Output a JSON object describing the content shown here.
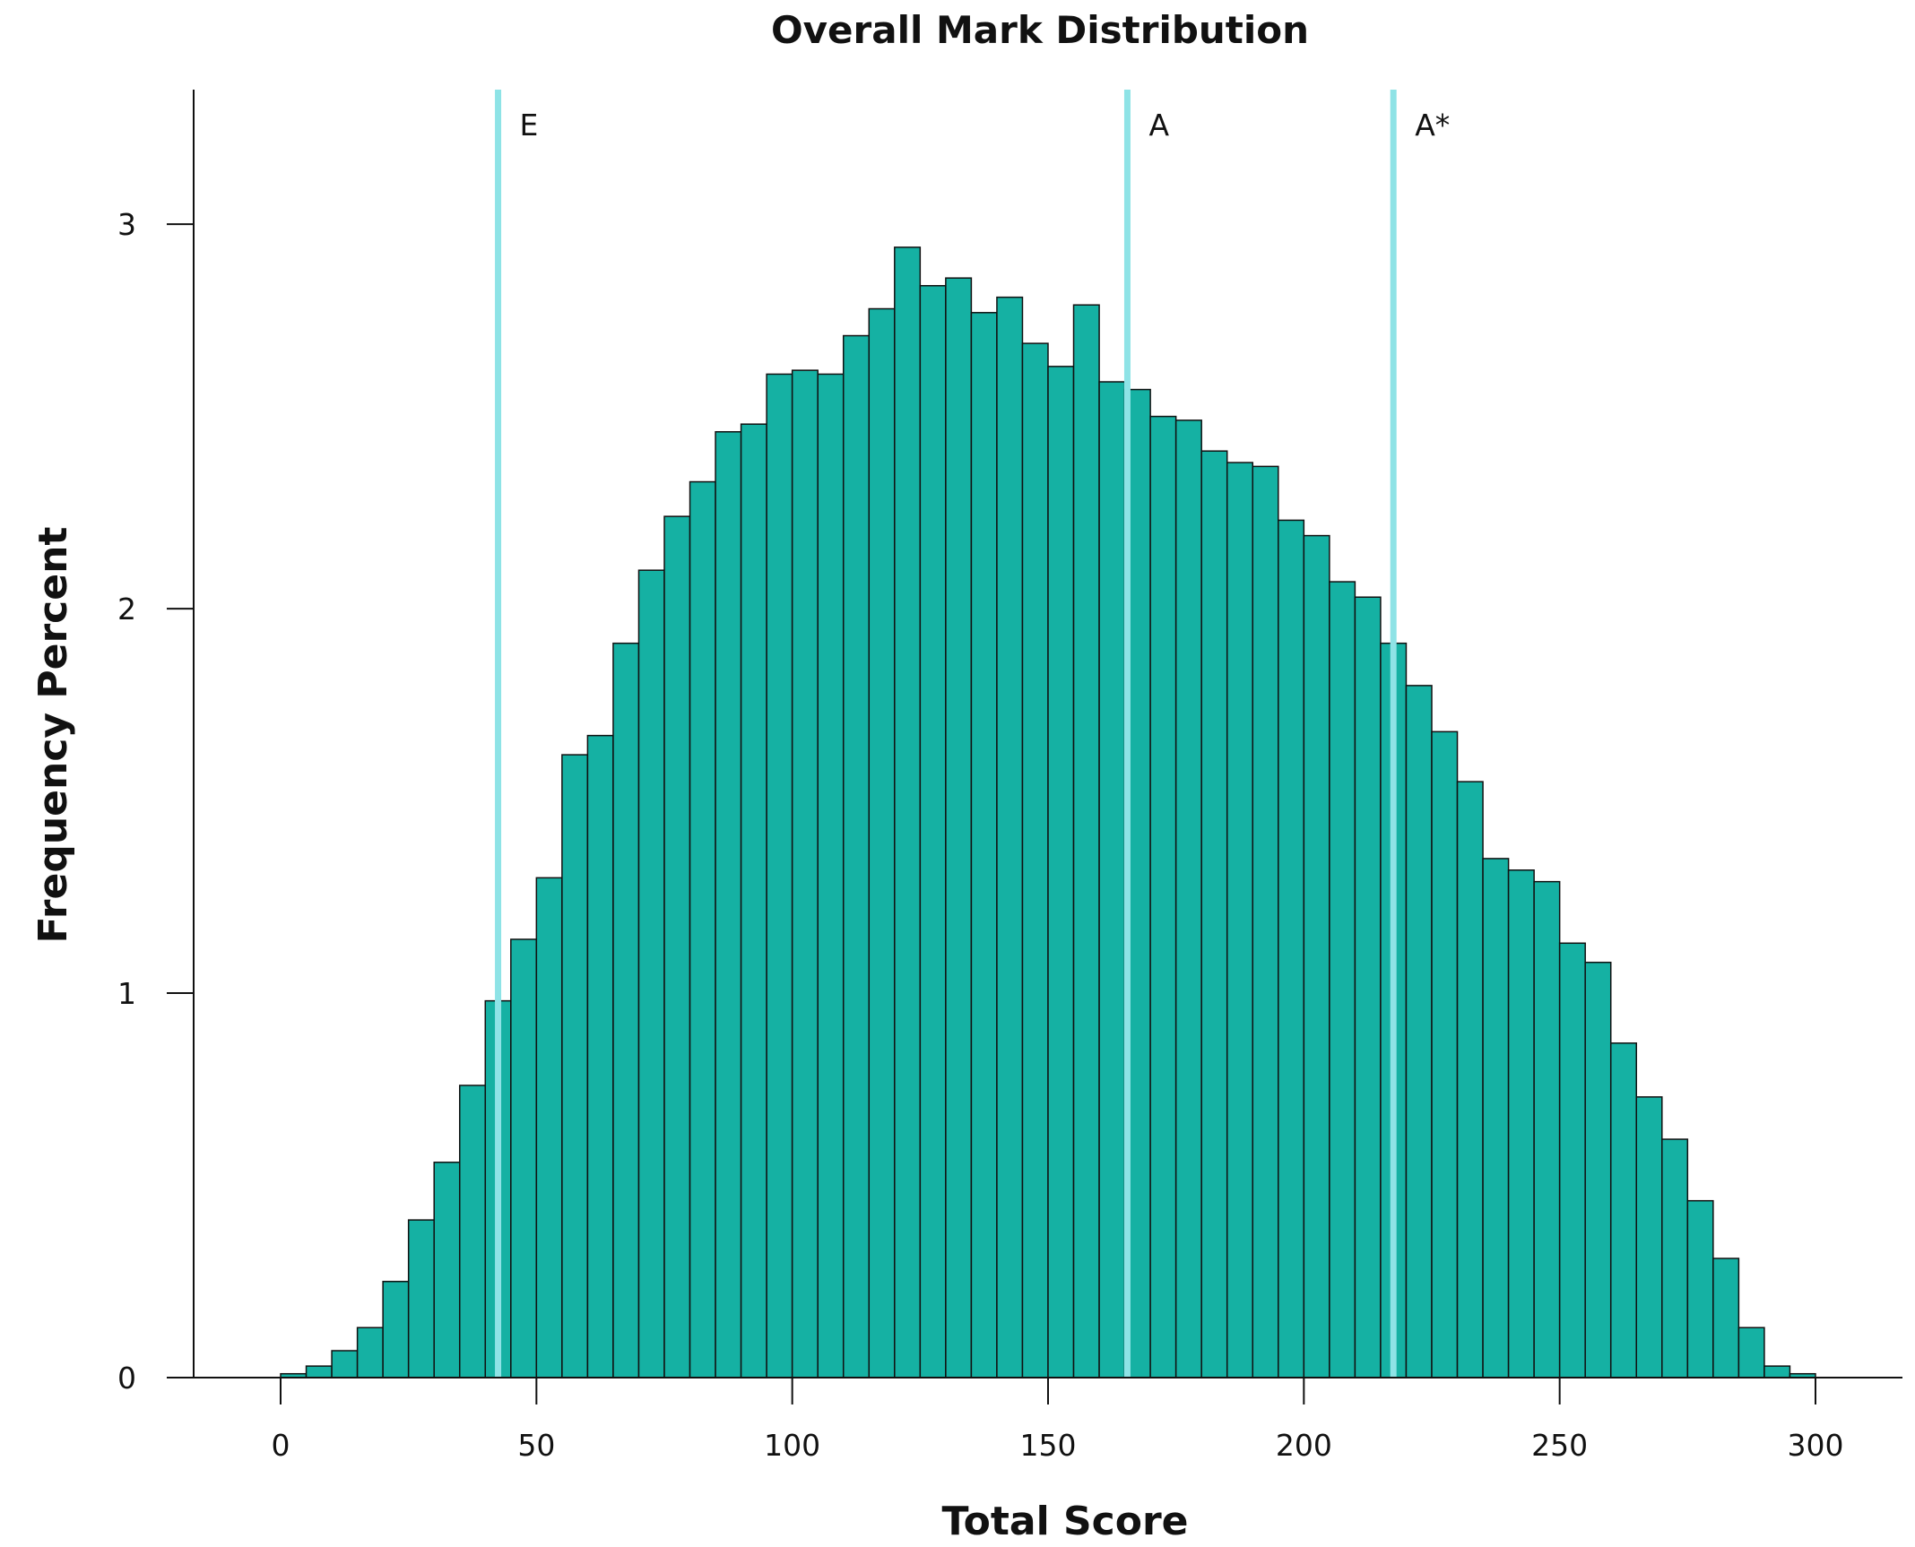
{
  "chart_data": {
    "type": "bar",
    "title": "Overall Mark Distribution",
    "xlabel": "Total Score",
    "ylabel": "Frequency Percent",
    "xlim": [
      -17,
      317
    ],
    "ylim": [
      0,
      3.35
    ],
    "xticks": [
      0,
      50,
      100,
      150,
      200,
      250,
      300
    ],
    "yticks": [
      0,
      1,
      2,
      3
    ],
    "bin_width": 5,
    "bin_starts": [
      0,
      5,
      10,
      15,
      20,
      25,
      30,
      35,
      40,
      45,
      50,
      55,
      60,
      65,
      70,
      75,
      80,
      85,
      90,
      95,
      100,
      105,
      110,
      115,
      120,
      125,
      130,
      135,
      140,
      145,
      150,
      155,
      160,
      165,
      170,
      175,
      180,
      185,
      190,
      195,
      200,
      205,
      210,
      215,
      220,
      225,
      230,
      235,
      240,
      245,
      250,
      255,
      260,
      265,
      270,
      275,
      280,
      285,
      290,
      295,
      300
    ],
    "values": [
      0.01,
      0.03,
      0.07,
      0.13,
      0.25,
      0.41,
      0.56,
      0.76,
      0.98,
      1.14,
      1.3,
      1.62,
      1.67,
      1.91,
      2.1,
      2.24,
      2.33,
      2.46,
      2.48,
      2.61,
      2.62,
      2.61,
      2.71,
      2.78,
      2.94,
      2.84,
      2.86,
      2.77,
      2.81,
      2.69,
      2.63,
      2.79,
      2.59,
      2.57,
      2.5,
      2.49,
      2.41,
      2.38,
      2.37,
      2.23,
      2.19,
      2.07,
      2.03,
      1.91,
      1.8,
      1.68,
      1.55,
      1.35,
      1.32,
      1.29,
      1.13,
      1.08,
      0.87,
      0.73,
      0.62,
      0.46,
      0.31,
      0.13,
      0.03,
      0.01,
      0.0
    ],
    "bar_color": "#15b1a3",
    "grade_lines": [
      {
        "label": "E",
        "x": 42.5
      },
      {
        "label": "A",
        "x": 165.5
      },
      {
        "label": "A*",
        "x": 217.5
      }
    ],
    "grade_line_color": "#8ee3e6",
    "grid": false
  }
}
